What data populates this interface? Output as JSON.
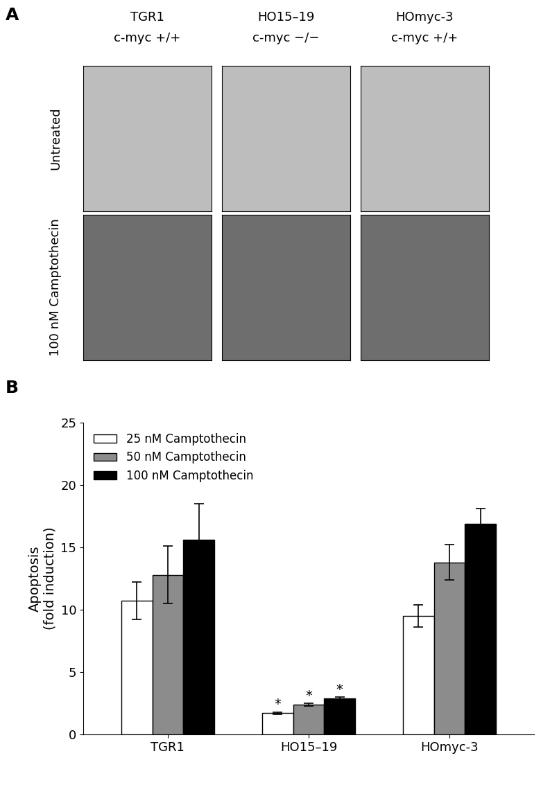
{
  "panel_a": {
    "label": "A",
    "columns": [
      {
        "name": "TGR1",
        "genotype": "c-myc +/+"
      },
      {
        "name": "HO15–19",
        "genotype": "c-myc −/−"
      },
      {
        "name": "HOmyc-3",
        "genotype": "c-myc +/+"
      }
    ],
    "rows": [
      "Untreated",
      "100 nM Camptothecin"
    ]
  },
  "chart_data": {
    "type": "bar",
    "panel_label": "B",
    "y_label": "Apoptosis\n(fold induction)",
    "categories": [
      "TGR1",
      "HO15–19",
      "HOmyc-3"
    ],
    "series": [
      {
        "name": "25 nM Camptothecin",
        "color": "#ffffff",
        "values": [
          10.7,
          1.7,
          9.5
        ],
        "errors": [
          1.5,
          0.1,
          0.9
        ],
        "significance": [
          null,
          "*",
          null
        ]
      },
      {
        "name": "50 nM Camptothecin",
        "color": "#8c8c8c",
        "values": [
          12.8,
          2.4,
          13.8
        ],
        "errors": [
          2.3,
          0.1,
          1.4
        ],
        "significance": [
          null,
          "*",
          null
        ]
      },
      {
        "name": "100 nM Camptothecin",
        "color": "#000000",
        "values": [
          15.6,
          2.9,
          16.9
        ],
        "errors": [
          2.9,
          0.1,
          1.2
        ],
        "significance": [
          null,
          "*",
          null
        ]
      }
    ],
    "ylim": [
      0,
      25
    ],
    "yticks": [
      0,
      5,
      10,
      15,
      20,
      25
    ],
    "legend": "upper left",
    "grid": false
  }
}
